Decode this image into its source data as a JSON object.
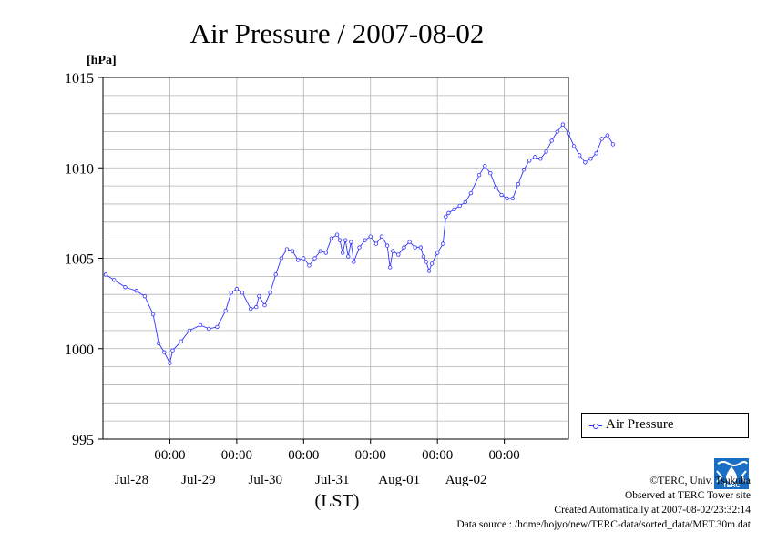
{
  "chart_data": {
    "type": "line",
    "title": "Air Pressure / 2007-08-02",
    "xlabel": "(LST)",
    "ylabel": "[hPa]",
    "ylim": [
      995,
      1015
    ],
    "yticks": [
      "1015",
      "1010",
      "1005",
      "1000",
      "995"
    ],
    "xticks": [
      {
        "time": "00:00",
        "date": "Jul-28"
      },
      {
        "time": "00:00",
        "date": "Jul-29"
      },
      {
        "time": "00:00",
        "date": "Jul-30"
      },
      {
        "time": "00:00",
        "date": "Jul-31"
      },
      {
        "time": "00:00",
        "date": "Aug-01"
      },
      {
        "time": "00:00",
        "date": "Aug-02"
      }
    ],
    "grid": true,
    "legend_position": "bottom-right, outside plot",
    "series": [
      {
        "name": "Air Pressure",
        "color": "#3333ff",
        "marker": "circle",
        "points": [
          [
            "Jul-27 01:00",
            1004.1
          ],
          [
            "Jul-27 04:00",
            1003.8
          ],
          [
            "Jul-27 08:00",
            1003.4
          ],
          [
            "Jul-27 12:00",
            1003.2
          ],
          [
            "Jul-27 15:00",
            1002.9
          ],
          [
            "Jul-27 18:00",
            1001.9
          ],
          [
            "Jul-27 20:00",
            1000.3
          ],
          [
            "Jul-27 22:00",
            999.8
          ],
          [
            "Jul-28 00:00",
            999.2
          ],
          [
            "Jul-28 01:00",
            999.9
          ],
          [
            "Jul-28 04:00",
            1000.4
          ],
          [
            "Jul-28 07:00",
            1001.0
          ],
          [
            "Jul-28 11:00",
            1001.3
          ],
          [
            "Jul-28 14:00",
            1001.1
          ],
          [
            "Jul-28 17:00",
            1001.2
          ],
          [
            "Jul-28 20:00",
            1002.1
          ],
          [
            "Jul-28 22:00",
            1003.1
          ],
          [
            "Jul-29 00:00",
            1003.3
          ],
          [
            "Jul-29 02:00",
            1003.1
          ],
          [
            "Jul-29 05:00",
            1002.2
          ],
          [
            "Jul-29 07:00",
            1002.3
          ],
          [
            "Jul-29 08:00",
            1002.9
          ],
          [
            "Jul-29 10:00",
            1002.4
          ],
          [
            "Jul-29 12:00",
            1003.1
          ],
          [
            "Jul-29 14:00",
            1004.1
          ],
          [
            "Jul-29 16:00",
            1005.0
          ],
          [
            "Jul-29 18:00",
            1005.5
          ],
          [
            "Jul-29 20:00",
            1005.4
          ],
          [
            "Jul-29 22:00",
            1004.9
          ],
          [
            "Jul-30 00:00",
            1005.0
          ],
          [
            "Jul-30 02:00",
            1004.6
          ],
          [
            "Jul-30 04:00",
            1005.0
          ],
          [
            "Jul-30 06:00",
            1005.4
          ],
          [
            "Jul-30 08:00",
            1005.3
          ],
          [
            "Jul-30 10:00",
            1006.1
          ],
          [
            "Jul-30 12:00",
            1006.3
          ],
          [
            "Jul-30 13:00",
            1006.0
          ],
          [
            "Jul-30 14:00",
            1005.3
          ],
          [
            "Jul-30 15:00",
            1006.0
          ],
          [
            "Jul-30 16:00",
            1005.1
          ],
          [
            "Jul-30 17:00",
            1005.9
          ],
          [
            "Jul-30 18:00",
            1004.8
          ],
          [
            "Jul-30 20:00",
            1005.6
          ],
          [
            "Jul-30 22:00",
            1006.0
          ],
          [
            "Jul-31 00:00",
            1006.2
          ],
          [
            "Jul-31 02:00",
            1005.8
          ],
          [
            "Jul-31 04:00",
            1006.2
          ],
          [
            "Jul-31 06:00",
            1005.7
          ],
          [
            "Jul-31 07:00",
            1004.5
          ],
          [
            "Jul-31 08:00",
            1005.4
          ],
          [
            "Jul-31 10:00",
            1005.2
          ],
          [
            "Jul-31 12:00",
            1005.6
          ],
          [
            "Jul-31 14:00",
            1005.9
          ],
          [
            "Jul-31 16:00",
            1005.6
          ],
          [
            "Jul-31 18:00",
            1005.6
          ],
          [
            "Jul-31 19:00",
            1005.1
          ],
          [
            "Jul-31 20:00",
            1004.8
          ],
          [
            "Jul-31 21:00",
            1004.3
          ],
          [
            "Jul-31 22:00",
            1004.7
          ],
          [
            "Aug-01 00:00",
            1005.3
          ],
          [
            "Aug-01 02:00",
            1005.8
          ],
          [
            "Aug-01 03:00",
            1007.3
          ],
          [
            "Aug-01 04:00",
            1007.5
          ],
          [
            "Aug-01 06:00",
            1007.7
          ],
          [
            "Aug-01 08:00",
            1007.9
          ],
          [
            "Aug-01 10:00",
            1008.1
          ],
          [
            "Aug-01 12:00",
            1008.6
          ],
          [
            "Aug-01 15:00",
            1009.6
          ],
          [
            "Aug-01 17:00",
            1010.1
          ],
          [
            "Aug-01 19:00",
            1009.7
          ],
          [
            "Aug-01 21:00",
            1008.9
          ],
          [
            "Aug-01 23:00",
            1008.5
          ],
          [
            "Aug-02 01:00",
            1008.3
          ],
          [
            "Aug-02 03:00",
            1008.3
          ],
          [
            "Aug-02 05:00",
            1009.1
          ],
          [
            "Aug-02 07:00",
            1009.9
          ],
          [
            "Aug-02 09:00",
            1010.4
          ],
          [
            "Aug-02 11:00",
            1010.6
          ],
          [
            "Aug-02 13:00",
            1010.5
          ],
          [
            "Aug-02 15:00",
            1010.9
          ],
          [
            "Aug-02 17:00",
            1011.5
          ],
          [
            "Aug-02 19:00",
            1012.0
          ],
          [
            "Aug-02 21:00",
            1012.4
          ],
          [
            "Aug-02 23:00",
            1011.9
          ],
          [
            "Aug-03 01:00",
            1011.2
          ],
          [
            "Aug-03 03:00",
            1010.7
          ],
          [
            "Aug-03 05:00",
            1010.3
          ],
          [
            "Aug-03 07:00",
            1010.5
          ],
          [
            "Aug-03 09:00",
            1010.8
          ],
          [
            "Aug-03 11:00",
            1011.6
          ],
          [
            "Aug-03 13:00",
            1011.8
          ],
          [
            "Aug-03 15:00",
            1011.3
          ]
        ]
      }
    ]
  },
  "legend": {
    "label": "Air Pressure"
  },
  "credits": {
    "copyright": "©TERC, Univ. Tsukuba",
    "observed": "Observed at TERC Tower site",
    "created": "Created Automatically at 2007-08-02/23:32:14",
    "source": "Data source : /home/hojyo/new/TERC-data/sorted_data/MET.30m.dat"
  },
  "logo": {
    "text": "TERC",
    "color": "#1a6fc4"
  }
}
